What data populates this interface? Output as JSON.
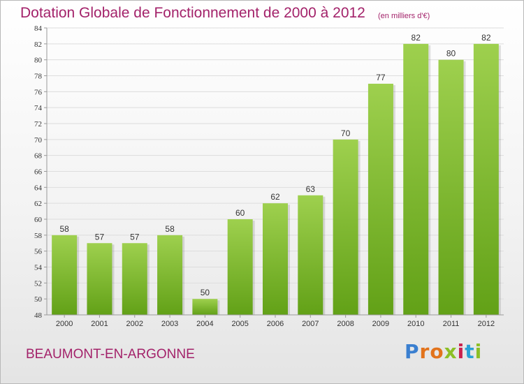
{
  "header": {
    "title": "Dotation Globale de Fonctionnement de 2000 à 2012",
    "unit": "(en milliers d'€)"
  },
  "footer": {
    "place": "BEAUMONT-EN-ARGONNE",
    "logo": "Proxiti"
  },
  "colors": {
    "bar_top": "#9ed04e",
    "bar_bottom": "#62a117",
    "title": "#a3226a",
    "axis_text": "#333333"
  },
  "chart_data": {
    "type": "bar",
    "title": "Dotation Globale de Fonctionnement de 2000 à 2012",
    "subtitle": "(en milliers d'€)",
    "xlabel": "",
    "ylabel": "",
    "categories": [
      "2000",
      "2001",
      "2002",
      "2003",
      "2004",
      "2005",
      "2006",
      "2007",
      "2008",
      "2009",
      "2010",
      "2011",
      "2012"
    ],
    "values": [
      58,
      57,
      57,
      58,
      50,
      60,
      62,
      63,
      70,
      77,
      82,
      80,
      82
    ],
    "ylim": [
      48,
      84
    ],
    "yticks": [
      48,
      50,
      52,
      54,
      56,
      58,
      60,
      62,
      64,
      66,
      68,
      70,
      72,
      74,
      76,
      78,
      80,
      82,
      84
    ],
    "grid": true,
    "legend": "none"
  }
}
